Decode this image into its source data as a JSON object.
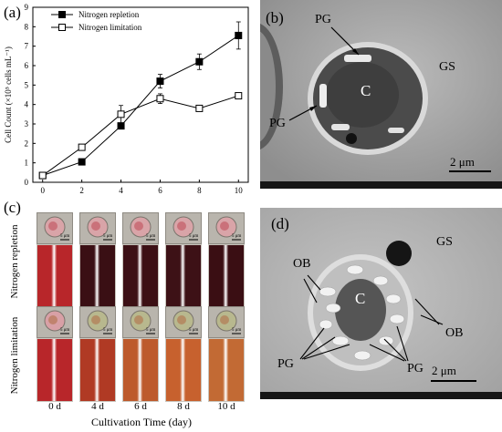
{
  "panels": {
    "a": "(a)",
    "b": "(b)",
    "c": "(c)",
    "d": "(d)"
  },
  "chart_data": {
    "type": "line",
    "ylabel": "Cell Count (×10⁵ cells mL⁻¹)",
    "xlabel": "",
    "x": [
      0,
      2,
      4,
      6,
      8,
      10
    ],
    "xlim": [
      -0.5,
      10.5
    ],
    "ylim": [
      0,
      9
    ],
    "xticks": [
      "0",
      "2",
      "4",
      "6",
      "8",
      "10"
    ],
    "yticks": [
      "0",
      "1",
      "2",
      "3",
      "4",
      "5",
      "6",
      "7",
      "8",
      "9"
    ],
    "legend_position": "top-left",
    "series": [
      {
        "name": "Nitrogen repletion",
        "marker": "filled-square",
        "values": [
          0.35,
          1.05,
          2.9,
          5.2,
          6.2,
          7.55
        ],
        "errors": [
          0.05,
          0.06,
          0.15,
          0.35,
          0.4,
          0.7
        ]
      },
      {
        "name": "Nitrogen limitation",
        "marker": "open-square",
        "values": [
          0.35,
          1.8,
          3.5,
          4.3,
          3.8,
          4.45
        ],
        "errors": [
          0.05,
          0.1,
          0.45,
          0.25,
          0.1,
          0.15
        ]
      }
    ]
  },
  "panel_b": {
    "labels": {
      "pg_top": "PG",
      "pg_left": "PG",
      "gs": "GS",
      "c": "C"
    },
    "scale": "2 μm"
  },
  "panel_c": {
    "row_labels": [
      "Nitrogen repletion",
      "Nitrogen limitation"
    ],
    "days": [
      "0 d",
      "4 d",
      "6 d",
      "8 d",
      "10 d"
    ],
    "scale_text": "5 μm",
    "xlabel": "Cultivation Time (day)",
    "repletion_tube_colors": [
      "#b8262a",
      "#3a0f14",
      "#3c1015",
      "#3d1116",
      "#3a0e13"
    ],
    "limitation_tube_colors": [
      "#b8262a",
      "#b03a24",
      "#bd5a2c",
      "#c7612e",
      "#c26a34"
    ]
  },
  "panel_d": {
    "labels": {
      "ob_top": "OB",
      "ob_right": "OB",
      "pg_left": "PG",
      "pg_right": "PG",
      "gs": "GS",
      "c": "C"
    },
    "scale": "2 μm"
  }
}
